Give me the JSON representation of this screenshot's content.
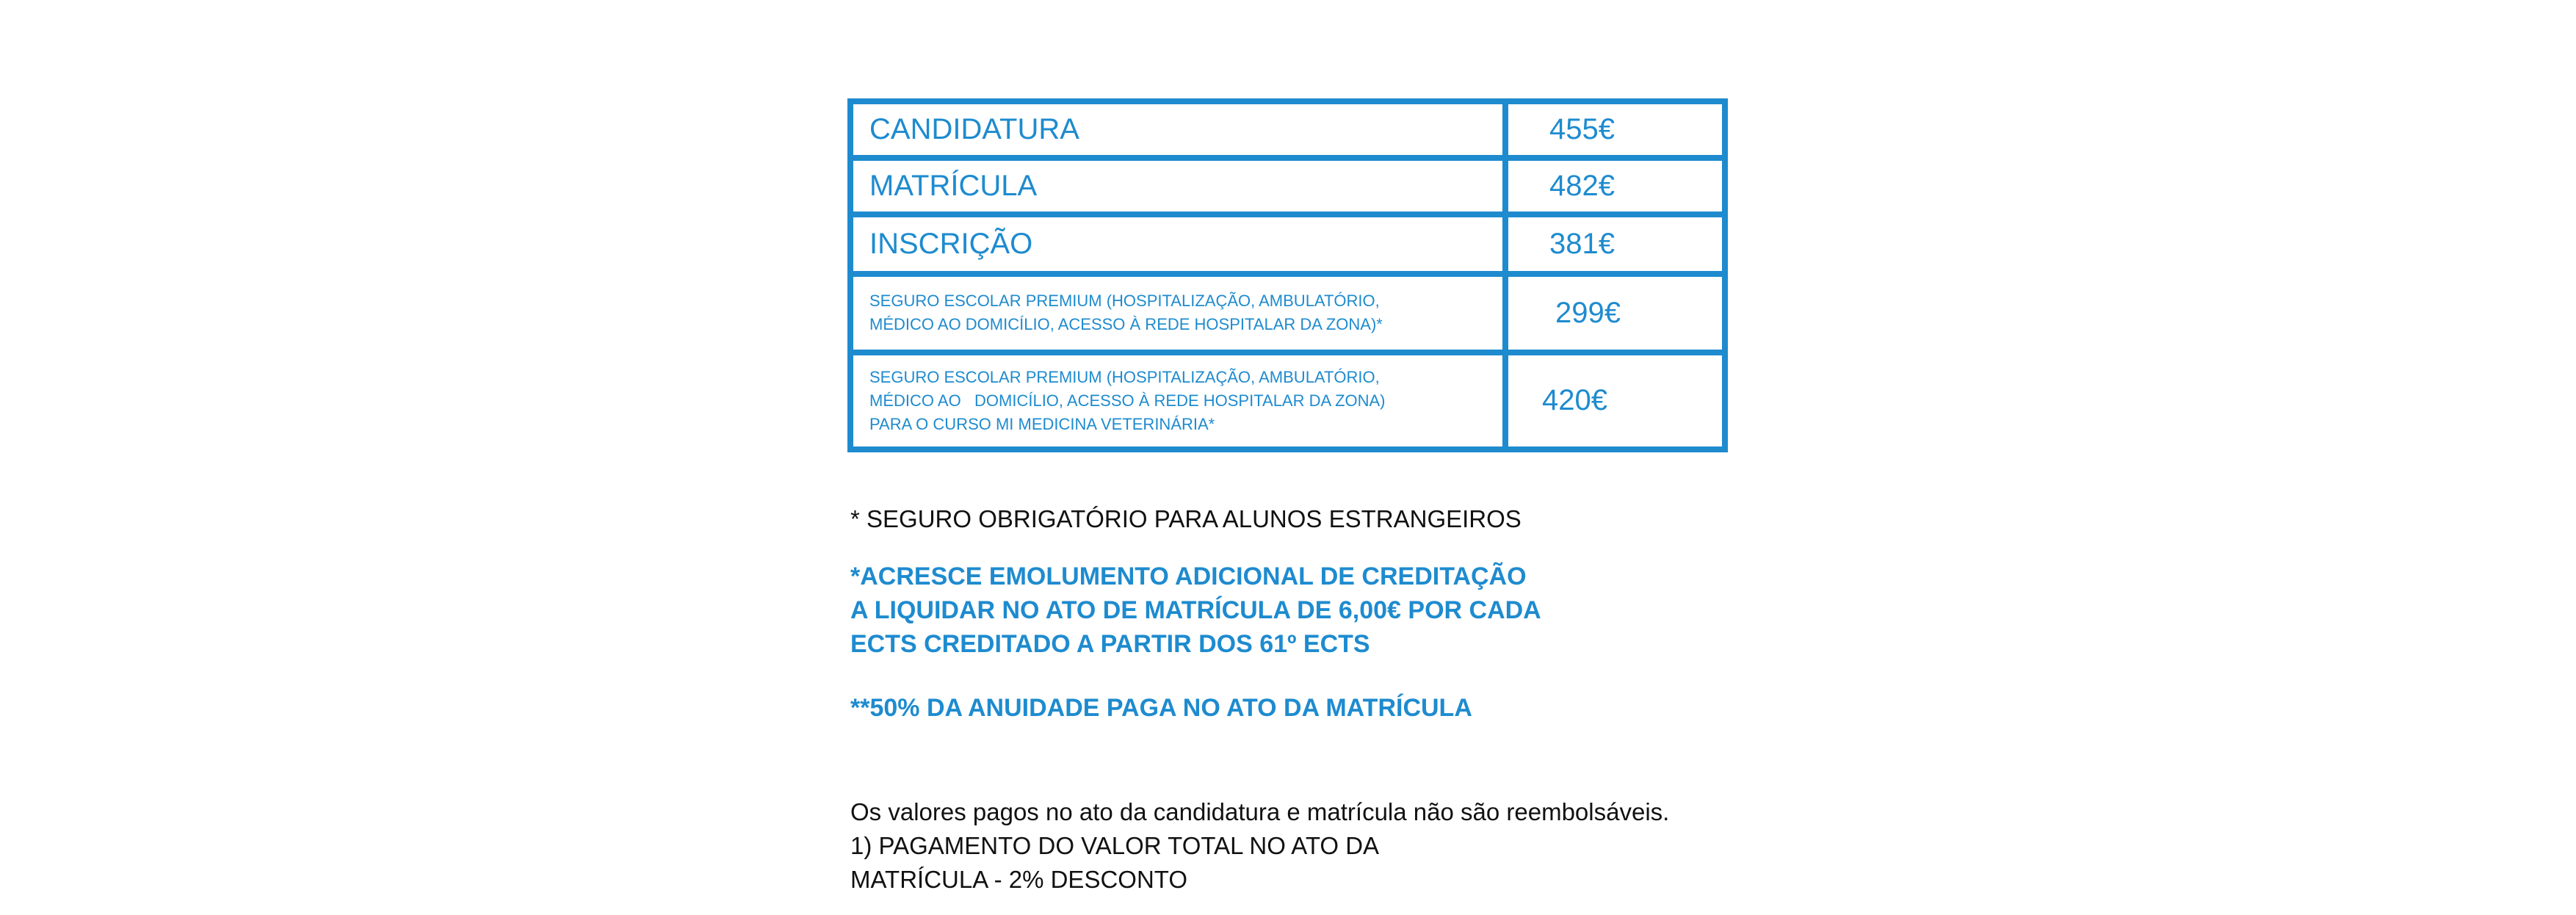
{
  "accent_color": "#1e8bcf",
  "fees": [
    {
      "label_lines": [
        "CANDIDATURA"
      ],
      "price": "455€"
    },
    {
      "label_lines": [
        "MATRÍCULA"
      ],
      "price": "482€"
    },
    {
      "label_lines": [
        "INSCRIÇÃO"
      ],
      "price": "381€"
    },
    {
      "label_lines": [
        "SEGURO ESCOLAR PREMIUM (HOSPITALIZAÇÃO, AMBULATÓRIO,",
        "MÉDICO AO DOMICÍLIO, ACESSO À REDE HOSPITALAR DA ZONA)*"
      ],
      "price": "299€"
    },
    {
      "label_lines": [
        "SEGURO ESCOLAR PREMIUM (HOSPITALIZAÇÃO, AMBULATÓRIO,",
        "MÉDICO AO   DOMICÍLIO, ACESSO À REDE HOSPITALAR DA ZONA)",
        "PARA O CURSO MI MEDICINA VETERINÁRIA*"
      ],
      "price": "420€"
    }
  ],
  "notes": {
    "insurance": "* SEGURO OBRIGATÓRIO PARA ALUNOS ESTRANGEIROS",
    "credit_lines": [
      "*ACRESCE EMOLUMENTO ADICIONAL DE CREDITAÇÃO",
      "A LIQUIDAR NO ATO DE MATRÍCULA DE 6,00€ POR CADA",
      "ECTS CREDITADO A PARTIR DOS 61º ECTS"
    ],
    "annuity": "**50% DA ANUIDADE PAGA NO ATO DA MATRÍCULA",
    "refund": "Os valores pagos no ato da candidatura e matrícula não são reembolsáveis.",
    "payment_lines": [
      "1) PAGAMENTO DO VALOR TOTAL NO ATO DA",
      "MATRÍCULA - 2% DESCONTO"
    ]
  }
}
